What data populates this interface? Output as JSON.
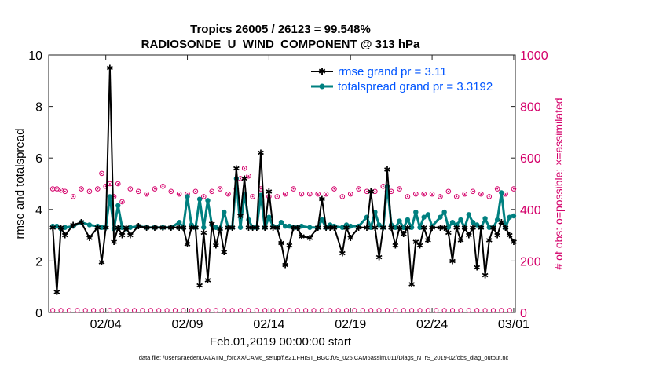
{
  "chart_data": {
    "type": "line",
    "title_line1": "Tropics 26005 / 26123 = 99.548%",
    "title_line2": "RADIOSONDE_U_WIND_COMPONENT @ 313 hPa",
    "xlabel": "Feb.01,2019 00:00:00 start",
    "ylabel_left": "rmse and totalspread",
    "ylabel_right": "# of obs: o=possible; ×=assimilated",
    "footnote": "data file: /Users/raeder/DAI/ATM_forcXX/CAM6_setup/f.e21.FHIST_BGC.f09_025.CAM6assim.011/Diags_NTrS_2019-02/obs_diag_output.nc",
    "xlim": [
      31.5,
      60.1
    ],
    "ylim_left": [
      0,
      10
    ],
    "ylim_right": [
      0,
      1000
    ],
    "x_ticks": [
      {
        "x": 35,
        "label": "02/04"
      },
      {
        "x": 40,
        "label": "02/09"
      },
      {
        "x": 45,
        "label": "02/14"
      },
      {
        "x": 50,
        "label": "02/19"
      },
      {
        "x": 55,
        "label": "02/24"
      },
      {
        "x": 60,
        "label": "03/01"
      }
    ],
    "y_ticks_left": [
      "0",
      "2",
      "4",
      "6",
      "8",
      "10"
    ],
    "y_ticks_right": [
      "0",
      "200",
      "400",
      "600",
      "800",
      "1000"
    ],
    "colors": {
      "rmse": "#000000",
      "spread": "#008080",
      "obs": "#d4006a",
      "legend_text": "#0055ff"
    },
    "legend": {
      "placement": "top-right",
      "rmse_label": "rmse grand pr = 3.11",
      "spread_label": "totalspread grand pr = 3.3192"
    },
    "series": [
      {
        "name": "rmse",
        "x": [
          31.75,
          32.0,
          32.25,
          32.5,
          33.0,
          33.5,
          34.0,
          34.5,
          34.75,
          35.0,
          35.25,
          35.5,
          35.75,
          36.0,
          36.25,
          36.5,
          37.0,
          37.5,
          38.0,
          38.5,
          39.0,
          39.5,
          39.75,
          40.0,
          40.25,
          40.5,
          40.75,
          41.0,
          41.25,
          41.5,
          41.75,
          42.0,
          42.25,
          42.5,
          42.75,
          43.0,
          43.25,
          43.5,
          43.75,
          44.0,
          44.25,
          44.5,
          44.75,
          45.0,
          45.25,
          45.5,
          45.75,
          46.0,
          46.25,
          46.5,
          46.75,
          47.0,
          47.5,
          48.0,
          48.25,
          48.5,
          48.75,
          49.0,
          49.5,
          49.75,
          50.0,
          50.5,
          51.0,
          51.25,
          51.5,
          51.75,
          52.0,
          52.25,
          52.5,
          52.75,
          53.0,
          53.25,
          53.5,
          53.75,
          54.0,
          54.25,
          54.5,
          54.75,
          55.0,
          55.5,
          55.75,
          56.0,
          56.25,
          56.5,
          56.75,
          57.0,
          57.25,
          57.5,
          57.75,
          58.0,
          58.25,
          58.5,
          58.75,
          59.0,
          59.25,
          59.5,
          59.75,
          60.0
        ],
        "y": [
          3.3,
          0.8,
          3.3,
          3.0,
          3.4,
          3.5,
          2.9,
          3.3,
          1.95,
          3.3,
          9.5,
          2.75,
          3.3,
          3.0,
          3.3,
          3.0,
          3.35,
          3.3,
          3.3,
          3.3,
          3.3,
          3.3,
          3.3,
          2.65,
          3.3,
          3.3,
          1.05,
          3.1,
          1.25,
          3.45,
          2.6,
          3.25,
          2.35,
          3.3,
          3.3,
          5.6,
          3.75,
          5.2,
          3.3,
          3.3,
          3.3,
          6.2,
          3.3,
          4.7,
          3.3,
          3.3,
          2.7,
          1.85,
          2.6,
          3.3,
          3.3,
          2.95,
          2.9,
          3.3,
          4.4,
          3.3,
          3.3,
          3.3,
          2.3,
          3.3,
          2.9,
          3.3,
          3.3,
          4.7,
          3.3,
          2.15,
          3.3,
          5.55,
          3.3,
          2.6,
          3.3,
          3.05,
          3.3,
          1.1,
          2.75,
          2.6,
          3.3,
          2.8,
          3.3,
          3.3,
          3.3,
          3.1,
          2.0,
          3.3,
          2.8,
          3.3,
          3.0,
          3.3,
          1.75,
          3.3,
          1.45,
          2.8,
          3.3,
          3.0,
          3.5,
          3.3,
          3.0,
          2.75
        ],
        "y_wrapped_note": ""
      },
      {
        "name": "totalspread",
        "x": [
          31.75,
          32.0,
          32.25,
          32.5,
          33.0,
          33.5,
          34.0,
          34.5,
          34.75,
          35.0,
          35.25,
          35.5,
          35.75,
          36.0,
          36.25,
          36.5,
          37.0,
          37.5,
          38.0,
          38.5,
          39.0,
          39.5,
          39.75,
          40.0,
          40.25,
          40.5,
          40.75,
          41.0,
          41.25,
          41.5,
          41.75,
          42.0,
          42.25,
          42.5,
          42.75,
          43.0,
          43.25,
          43.5,
          43.75,
          44.0,
          44.25,
          44.5,
          44.75,
          45.0,
          45.25,
          45.5,
          45.75,
          46.0,
          46.25,
          46.5,
          46.75,
          47.0,
          47.5,
          48.0,
          48.25,
          48.5,
          48.75,
          49.0,
          49.5,
          49.75,
          50.0,
          50.5,
          51.0,
          51.25,
          51.5,
          51.75,
          52.0,
          52.25,
          52.5,
          52.75,
          53.0,
          53.25,
          53.5,
          53.75,
          54.0,
          54.25,
          54.5,
          54.75,
          55.0,
          55.5,
          55.75,
          56.0,
          56.25,
          56.5,
          56.75,
          57.0,
          57.25,
          57.5,
          57.75,
          58.0,
          58.25,
          58.5,
          58.75,
          59.0,
          59.25,
          59.5,
          59.75,
          60.0
        ],
        "y": [
          3.35,
          3.35,
          3.25,
          3.3,
          3.35,
          3.5,
          3.4,
          3.35,
          3.3,
          3.3,
          4.5,
          3.25,
          4.15,
          3.3,
          3.25,
          3.3,
          3.35,
          3.3,
          3.3,
          3.3,
          3.3,
          3.5,
          3.3,
          4.5,
          3.4,
          3.3,
          4.4,
          3.3,
          4.35,
          3.4,
          3.3,
          3.25,
          3.9,
          3.3,
          3.3,
          5.2,
          3.3,
          4.6,
          3.6,
          3.3,
          3.3,
          4.55,
          3.3,
          3.7,
          3.35,
          3.3,
          3.5,
          3.35,
          3.35,
          3.3,
          3.3,
          3.35,
          3.3,
          3.3,
          3.6,
          3.3,
          3.4,
          3.35,
          3.3,
          3.4,
          3.35,
          3.35,
          3.7,
          3.3,
          3.9,
          3.4,
          3.3,
          4.9,
          3.4,
          3.3,
          3.55,
          3.3,
          3.6,
          3.3,
          3.9,
          3.3,
          3.7,
          3.8,
          3.35,
          3.7,
          3.9,
          3.3,
          3.5,
          3.4,
          3.6,
          3.3,
          3.8,
          3.5,
          3.4,
          3.3,
          3.65,
          3.3,
          3.3,
          3.6,
          4.65,
          3.3,
          3.7,
          3.75
        ]
      },
      {
        "name": "obs_possible",
        "x": [
          31.75,
          32.0,
          32.25,
          32.5,
          33.0,
          33.5,
          34.0,
          34.5,
          34.75,
          35.0,
          35.25,
          35.5,
          35.75,
          36.0,
          36.5,
          37.0,
          37.5,
          38.0,
          38.5,
          39.0,
          39.5,
          40.0,
          40.5,
          41.0,
          41.5,
          42.0,
          42.5,
          43.0,
          43.25,
          43.5,
          43.75,
          44.0,
          44.5,
          45.0,
          45.5,
          46.0,
          46.5,
          47.0,
          47.5,
          48.0,
          48.5,
          49.0,
          49.5,
          50.0,
          50.5,
          51.0,
          51.5,
          52.0,
          52.25,
          52.5,
          53.0,
          53.5,
          54.0,
          54.5,
          55.0,
          55.5,
          56.0,
          56.5,
          57.0,
          57.5,
          58.0,
          58.5,
          59.0,
          59.5,
          60.0
        ],
        "y": [
          480,
          480,
          475,
          470,
          450,
          480,
          470,
          480,
          540,
          490,
          500,
          450,
          500,
          430,
          480,
          470,
          460,
          480,
          490,
          470,
          460,
          460,
          470,
          450,
          470,
          480,
          460,
          480,
          520,
          560,
          530,
          450,
          480,
          450,
          450,
          460,
          480,
          460,
          460,
          460,
          460,
          480,
          450,
          460,
          480,
          470,
          470,
          490,
          470,
          470,
          480,
          450,
          460,
          460,
          460,
          450,
          470,
          450,
          460,
          470,
          460,
          450,
          480,
          460,
          480
        ],
        "note": "obs counts in right-axis units"
      },
      {
        "name": "obs_assimilated_low",
        "y_constant": 8
      }
    ]
  }
}
